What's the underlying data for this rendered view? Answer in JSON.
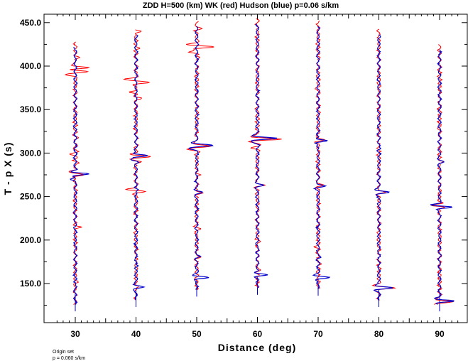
{
  "chart_data": {
    "type": "line",
    "title": "ZDD H=500 (km) WK (red) Hudson (blue) p=0.06 s/km",
    "xlabel": "Distance (deg)",
    "ylabel": "T - p X (s)",
    "xlim": [
      26,
      94
    ],
    "ylim": [
      118,
      455
    ],
    "xticks": [
      30,
      40,
      50,
      60,
      70,
      80,
      90
    ],
    "xtick_labels": [
      "30",
      "40",
      "50",
      "60",
      "70",
      "80",
      "90"
    ],
    "yticks": [
      150,
      200,
      250,
      300,
      350,
      400,
      450
    ],
    "ytick_labels": [
      "150.0",
      "200.0",
      "250.0",
      "300.0",
      "350.0",
      "400.0",
      "450.0"
    ],
    "series_colors": {
      "WK": "#ff0000",
      "Hudson": "#0000cc"
    },
    "traces": [
      {
        "distance": 30,
        "marker_time": 118,
        "start": 118,
        "end": 428,
        "red": [
          [
            410,
            3.5
          ],
          [
            398,
            9
          ],
          [
            394,
            8
          ],
          [
            390,
            -5
          ],
          [
            318,
            1.5
          ],
          [
            299,
            -2.5
          ],
          [
            289,
            2.5
          ],
          [
            279,
            -4
          ],
          [
            275,
            6
          ],
          [
            215,
            4.5
          ],
          [
            152,
            1
          ]
        ],
        "blue": [
          [
            276,
            9
          ],
          [
            270,
            -3
          ],
          [
            150,
            1
          ]
        ]
      },
      {
        "distance": 40,
        "marker_time": 123,
        "start": 123,
        "end": 442,
        "red": [
          [
            440,
            4
          ],
          [
            420,
            2
          ],
          [
            385,
            -7
          ],
          [
            381,
            8
          ],
          [
            370,
            -5
          ],
          [
            363,
            3
          ],
          [
            296,
            9
          ],
          [
            290,
            4
          ],
          [
            258,
            -6
          ],
          [
            256,
            4
          ],
          [
            178,
            2
          ],
          [
            147,
            2
          ]
        ],
        "blue": [
          [
            297,
            7
          ],
          [
            292,
            -3
          ],
          [
            258,
            2
          ],
          [
            170,
            1.5
          ],
          [
            146,
            4
          ]
        ]
      },
      {
        "distance": 50,
        "marker_time": 135,
        "start": 135,
        "end": 452,
        "red": [
          [
            443,
            3
          ],
          [
            425,
            -3
          ],
          [
            422,
            9
          ],
          [
            416,
            -5
          ],
          [
            410,
            3
          ],
          [
            308,
            8
          ],
          [
            304,
            -4
          ],
          [
            275,
            3
          ],
          [
            254,
            4
          ],
          [
            227,
            -2
          ],
          [
            213,
            2
          ],
          [
            180,
            2
          ]
        ],
        "blue": [
          [
            309,
            9
          ],
          [
            305,
            -3
          ],
          [
            255,
            3
          ],
          [
            181,
            1.5
          ],
          [
            157,
            7
          ]
        ]
      },
      {
        "distance": 60,
        "marker_time": 137,
        "start": 137,
        "end": 455,
        "red": [
          [
            440,
            1.5
          ],
          [
            316,
            14
          ],
          [
            306,
            -3
          ],
          [
            263,
            4
          ],
          [
            199,
            2
          ],
          [
            165,
            1.5
          ]
        ],
        "blue": [
          [
            317,
            11
          ],
          [
            312,
            -2
          ],
          [
            263,
            3
          ],
          [
            188,
            1.5
          ],
          [
            160,
            7
          ]
        ]
      },
      {
        "distance": 70,
        "marker_time": 136,
        "start": 136,
        "end": 452,
        "red": [
          [
            410,
            2
          ],
          [
            375,
            -1.5
          ],
          [
            315,
            4
          ],
          [
            263,
            3
          ],
          [
            192,
            -2
          ],
          [
            172,
            2
          ]
        ],
        "blue": [
          [
            314,
            6
          ],
          [
            308,
            -2
          ],
          [
            262,
            4
          ],
          [
            180,
            1.5
          ],
          [
            157,
            7
          ]
        ]
      },
      {
        "distance": 80,
        "marker_time": 123,
        "start": 123,
        "end": 443,
        "red": [
          [
            335,
            1.5
          ],
          [
            255,
            4
          ],
          [
            145,
            9
          ]
        ],
        "blue": [
          [
            305,
            1.5
          ],
          [
            255,
            6
          ],
          [
            145,
            8
          ]
        ]
      },
      {
        "distance": 90,
        "marker_time": 118,
        "start": 118,
        "end": 425,
        "red": [
          [
            290,
            3
          ],
          [
            240,
            -5
          ],
          [
            238,
            3
          ],
          [
            129,
            7
          ]
        ],
        "blue": [
          [
            290,
            2
          ],
          [
            240,
            -3
          ],
          [
            238,
            7
          ],
          [
            130,
            9
          ]
        ]
      }
    ]
  },
  "footer": {
    "line1": "Origin set",
    "line2": "p = 0.060 s/km"
  }
}
